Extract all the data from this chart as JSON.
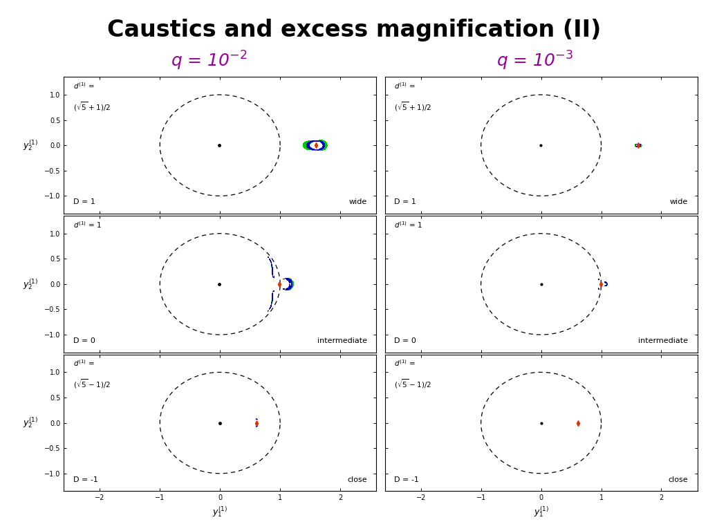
{
  "title": "Caustics and excess magnification (II)",
  "title_fontsize": 24,
  "title_fontweight": "bold",
  "col_label_color": "#990099",
  "col_label_fontsize": 18,
  "background_color": "#ffffff",
  "green_color": "#00cc00",
  "blue_color": "#0000cc",
  "xlim": [
    -2.6,
    2.6
  ],
  "ylim": [
    -1.35,
    1.35
  ],
  "xticks": [
    -2,
    -1,
    0,
    1,
    2
  ],
  "yticks": [
    -1,
    -0.5,
    0,
    0.5,
    1
  ],
  "row_labels": [
    "wide",
    "intermediate",
    "close"
  ],
  "D_labels": [
    "D = 1",
    "D = 0",
    "D = -1"
  ],
  "d1_label_row0_line1": "d^{(1)} =",
  "d1_label_row0_line2": "(√5+1)/2",
  "d1_label_row1": "d^{(1)} = 1",
  "d1_label_row2_line1": "d^{(1)} =",
  "d1_label_row2_line2": "(√5-1)/2"
}
